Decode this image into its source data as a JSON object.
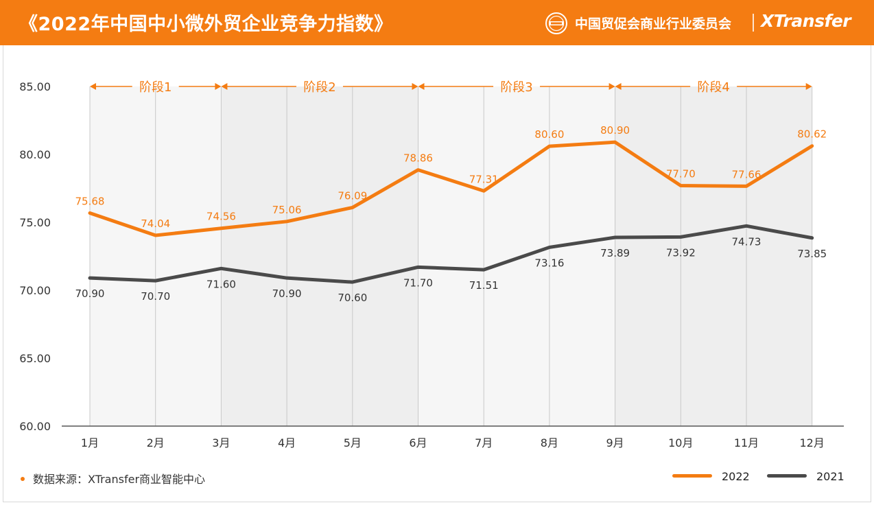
{
  "header": {
    "title": "《2022年中国中小微外贸企业竞争力指数》",
    "org_name": "中国贸促会商业行业委员会",
    "org_logo_icon": "ccpit-seal-icon",
    "brand": "XTransfer"
  },
  "colors": {
    "accent": "#f47c12",
    "series_2022": "#f47c12",
    "series_2021": "#4a4a4a",
    "band_light": "#f6f6f6",
    "band_dark": "#eeeeee"
  },
  "source": "数据来源：XTransfer商业智能中心",
  "chart_data": {
    "type": "line",
    "categories": [
      "1月",
      "2月",
      "3月",
      "4月",
      "5月",
      "6月",
      "7月",
      "8月",
      "9月",
      "10月",
      "11月",
      "12月"
    ],
    "ylim": [
      60,
      85
    ],
    "yticks": [
      "85.00",
      "80.00",
      "75.00",
      "70.00",
      "65.00",
      "60.00"
    ],
    "series": [
      {
        "name": "2022",
        "values": [
          75.68,
          74.04,
          74.56,
          75.06,
          76.09,
          78.86,
          77.31,
          80.6,
          80.9,
          77.7,
          77.66,
          80.62
        ],
        "labels": [
          "75.68",
          "74.04",
          "74.56",
          "75.06",
          "76.09",
          "78.86",
          "77.31",
          "80.60",
          "80.90",
          "77.70",
          "77.66",
          "80.62"
        ],
        "label_position": "above"
      },
      {
        "name": "2021",
        "values": [
          70.9,
          70.7,
          71.6,
          70.9,
          70.6,
          71.7,
          71.51,
          73.16,
          73.89,
          73.92,
          74.73,
          73.85
        ],
        "labels": [
          "70.90",
          "70.70",
          "71.60",
          "70.90",
          "70.60",
          "71.70",
          "71.51",
          "73.16",
          "73.89",
          "73.92",
          "74.73",
          "73.85"
        ],
        "label_position": "below"
      }
    ],
    "phases": [
      {
        "label": "阶段1",
        "start": 0,
        "end": 2
      },
      {
        "label": "阶段2",
        "start": 2,
        "end": 5
      },
      {
        "label": "阶段3",
        "start": 5,
        "end": 8
      },
      {
        "label": "阶段4",
        "start": 8,
        "end": 11
      }
    ],
    "grid": "vertical lines at each month",
    "legend_placement": "bottom-right"
  }
}
